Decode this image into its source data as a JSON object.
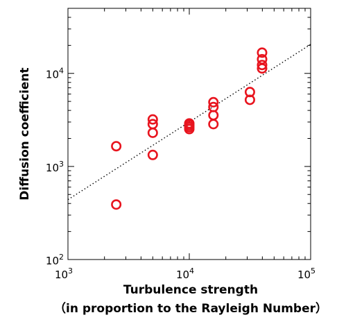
{
  "chart_data": {
    "type": "scatter",
    "x_scale": "log",
    "y_scale": "log",
    "xlim": [
      1000,
      100000
    ],
    "ylim": [
      100,
      50000
    ],
    "x_ticks": [
      1000,
      10000,
      100000
    ],
    "y_ticks": [
      100,
      1000,
      10000
    ],
    "x_tick_labels": [
      {
        "base": "10",
        "exp": "3"
      },
      {
        "base": "10",
        "exp": "4"
      },
      {
        "base": "10",
        "exp": "5"
      }
    ],
    "y_tick_labels": [
      {
        "base": "10",
        "exp": "2"
      },
      {
        "base": "10",
        "exp": "3"
      },
      {
        "base": "10",
        "exp": "4"
      }
    ],
    "xlabel_line1": "Turbulence strength",
    "xlabel_line2": "（in proportion to the Rayleigh Number）",
    "ylabel": "Diffusion coefficient",
    "grid": false,
    "marker_color": "#e8141e",
    "points": [
      {
        "x": 2500,
        "y": 1650
      },
      {
        "x": 2500,
        "y": 390
      },
      {
        "x": 5000,
        "y": 3200
      },
      {
        "x": 5000,
        "y": 2850
      },
      {
        "x": 5000,
        "y": 2300
      },
      {
        "x": 5000,
        "y": 1330
      },
      {
        "x": 10000,
        "y": 2900
      },
      {
        "x": 10000,
        "y": 2780
      },
      {
        "x": 10000,
        "y": 2650
      },
      {
        "x": 10000,
        "y": 2520
      },
      {
        "x": 15800,
        "y": 4900
      },
      {
        "x": 15800,
        "y": 4350
      },
      {
        "x": 15800,
        "y": 3550
      },
      {
        "x": 15800,
        "y": 2850
      },
      {
        "x": 31600,
        "y": 6300
      },
      {
        "x": 31600,
        "y": 5200
      },
      {
        "x": 39800,
        "y": 16700
      },
      {
        "x": 39800,
        "y": 14200
      },
      {
        "x": 39800,
        "y": 12300
      },
      {
        "x": 39800,
        "y": 11300
      }
    ],
    "fit_line": {
      "style": "dotted",
      "x": [
        1000,
        100000
      ],
      "y": [
        440,
        20500
      ]
    }
  }
}
